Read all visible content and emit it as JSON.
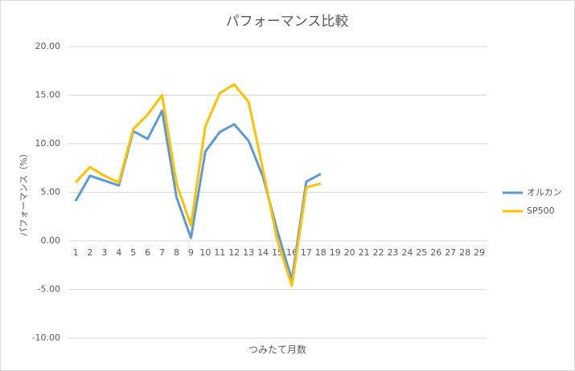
{
  "chart_data": {
    "type": "line",
    "title": "パフォーマンス比較",
    "x_label": "つみたて月数",
    "y_label": "パフォーマンス（%）",
    "categories": [
      1,
      2,
      3,
      4,
      5,
      6,
      7,
      8,
      9,
      10,
      11,
      12,
      13,
      14,
      15,
      16,
      17,
      18,
      19,
      20,
      21,
      22,
      23,
      24,
      25,
      26,
      27,
      28,
      29
    ],
    "series": [
      {
        "name": "オルカン",
        "color": "#5b9bd5",
        "values": [
          4.1,
          6.7,
          6.2,
          5.7,
          11.3,
          10.5,
          13.4,
          4.5,
          0.3,
          9.2,
          11.2,
          12.0,
          10.3,
          6.6,
          1.0,
          -4.0,
          6.1,
          6.9,
          null,
          null,
          null,
          null,
          null,
          null,
          null,
          null,
          null,
          null,
          null
        ]
      },
      {
        "name": "SP500",
        "color": "#ffc000",
        "values": [
          6.0,
          7.6,
          6.7,
          6.0,
          11.5,
          13.0,
          15.0,
          5.9,
          1.6,
          11.8,
          15.2,
          16.1,
          14.3,
          7.3,
          0.0,
          -4.6,
          5.5,
          5.9,
          null,
          null,
          null,
          null,
          null,
          null,
          null,
          null,
          null,
          null,
          null
        ]
      }
    ],
    "ylim": [
      -10,
      20
    ],
    "yticks": [
      {
        "value": -10,
        "label": "-10.00"
      },
      {
        "value": -5,
        "label": "-5.00"
      },
      {
        "value": 0,
        "label": "0.00"
      },
      {
        "value": 5,
        "label": "5.00"
      },
      {
        "value": 10,
        "label": "10.00"
      },
      {
        "value": 15,
        "label": "15.00"
      },
      {
        "value": 20,
        "label": "20.00"
      }
    ],
    "grid": true,
    "legend": "right"
  }
}
